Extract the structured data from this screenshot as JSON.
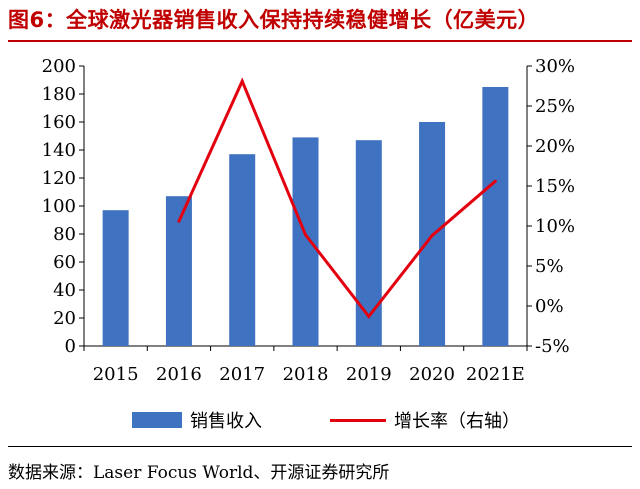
{
  "header": {
    "title": "图6：全球激光器销售收入保持持续稳健增长（亿美元）"
  },
  "footer": {
    "source": "数据来源：Laser Focus World、开源证券研究所"
  },
  "colors": {
    "bar": "#3f72c0",
    "line": "#e3000f",
    "title": "#c00000"
  },
  "chart_data": {
    "type": "bar",
    "categories": [
      "2015",
      "2016",
      "2017",
      "2018",
      "2019",
      "2020",
      "2021E"
    ],
    "series": [
      {
        "name": "销售收入",
        "type": "bar",
        "axis": "left",
        "values": [
          97,
          107,
          137,
          149,
          147,
          160,
          185
        ]
      },
      {
        "name": "增长率（右轴）",
        "type": "line",
        "axis": "right",
        "values": [
          null,
          10.6,
          28.1,
          8.9,
          -1.3,
          8.8,
          15.6
        ]
      }
    ],
    "y_left": {
      "ylim": [
        0,
        200
      ],
      "ticks": [
        "0",
        "20",
        "40",
        "60",
        "80",
        "100",
        "120",
        "140",
        "160",
        "180",
        "200"
      ]
    },
    "y_right": {
      "ylim": [
        -5,
        30
      ],
      "ticks": [
        "-5%",
        "0%",
        "5%",
        "10%",
        "15%",
        "20%",
        "25%",
        "30%"
      ]
    },
    "grid": false,
    "legend": "bottom"
  }
}
